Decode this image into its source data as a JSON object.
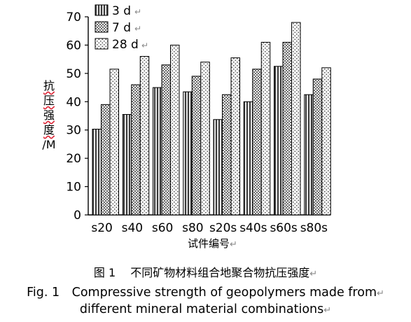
{
  "chart_data": {
    "type": "bar",
    "title": "",
    "xlabel": "试件编号",
    "ylabel_chars": [
      "抗",
      "压",
      "强",
      "度"
    ],
    "ylabel_unit": "/M",
    "ylim": [
      0,
      70
    ],
    "yticks": [
      0,
      10,
      20,
      30,
      40,
      50,
      60,
      70
    ],
    "grid": false,
    "legend_position": "top-left",
    "categories": [
      "s20",
      "s40",
      "s60",
      "s80",
      "s20s",
      "s40s",
      "s60s",
      "s80s"
    ],
    "series": [
      {
        "name": "3 d",
        "pattern": "vertical-stripes",
        "values": [
          30.3,
          35.5,
          45.0,
          43.5,
          33.7,
          40.0,
          52.5,
          42.5
        ]
      },
      {
        "name": "7 d",
        "pattern": "crosshatch",
        "values": [
          39.0,
          46.0,
          53.0,
          49.0,
          42.5,
          51.5,
          61.0,
          48.0
        ]
      },
      {
        "name": "28 d",
        "pattern": "dots",
        "values": [
          51.5,
          56.0,
          60.0,
          54.0,
          55.5,
          61.0,
          68.0,
          52.0
        ]
      }
    ]
  },
  "caption": {
    "cn": "图 1　 不同矿物材料组合地聚合物抗压强度",
    "en_line1": "Fig. 1　Compressive strength of geopolymers made from",
    "en_line2": "different mineral material combinations"
  },
  "return_mark": "↵"
}
